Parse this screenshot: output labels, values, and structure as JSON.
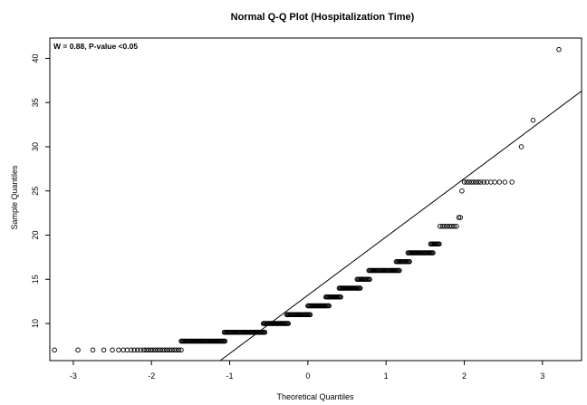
{
  "chart_data": {
    "type": "scatter",
    "title": "Normal Q-Q Plot (Hospitalization Time)",
    "xlabel": "Theoretical Quantiles",
    "ylabel": "Sample Quantiles",
    "annotation": "W = 0.88, P-value <0.05",
    "xlim": [
      -3.3,
      3.5
    ],
    "ylim": [
      5.8,
      42.3
    ],
    "xticks": [
      -3,
      -2,
      -1,
      0,
      1,
      2,
      3
    ],
    "yticks": [
      10,
      15,
      20,
      25,
      30,
      35,
      40
    ],
    "grid": false,
    "reference_line": {
      "slope": 6.6,
      "intercept": 13.2
    },
    "points": {
      "low_tail": [
        [
          -3.24,
          7
        ],
        [
          -2.94,
          7
        ],
        [
          -2.75,
          7
        ],
        [
          -2.61,
          7
        ],
        [
          -2.5,
          7
        ],
        [
          -2.42,
          7
        ],
        [
          -2.36,
          7
        ],
        [
          -2.31,
          7
        ],
        [
          -2.26,
          7
        ],
        [
          -2.22,
          7
        ],
        [
          -2.18,
          7
        ],
        [
          -2.14,
          7
        ],
        [
          -2.1,
          7
        ],
        [
          -2.07,
          7
        ],
        [
          -2.04,
          7
        ],
        [
          -2.01,
          7
        ],
        [
          -1.98,
          7
        ],
        [
          -1.95,
          7
        ],
        [
          -1.92,
          7
        ],
        [
          -1.89,
          7
        ],
        [
          -1.86,
          7
        ],
        [
          -1.83,
          7
        ],
        [
          -1.8,
          7
        ],
        [
          -1.77,
          7
        ],
        [
          -1.74,
          7
        ],
        [
          -1.71,
          7
        ],
        [
          -1.68,
          7
        ],
        [
          -1.65,
          7
        ],
        [
          -1.62,
          7
        ]
      ],
      "runs": [
        {
          "y": 8,
          "x_start": -1.62,
          "x_end": -1.06
        },
        {
          "y": 9,
          "x_start": -1.07,
          "x_end": -0.55
        },
        {
          "y": 10,
          "x_start": -0.57,
          "x_end": -0.25
        },
        {
          "y": 11,
          "x_start": -0.27,
          "x_end": 0.03
        },
        {
          "y": 12,
          "x_start": 0.0,
          "x_end": 0.27
        },
        {
          "y": 13,
          "x_start": 0.23,
          "x_end": 0.42
        },
        {
          "y": 14,
          "x_start": 0.4,
          "x_end": 0.67
        },
        {
          "y": 15,
          "x_start": 0.63,
          "x_end": 0.79
        },
        {
          "y": 16,
          "x_start": 0.78,
          "x_end": 1.17
        },
        {
          "y": 17,
          "x_start": 1.13,
          "x_end": 1.3
        },
        {
          "y": 18,
          "x_start": 1.28,
          "x_end": 1.6
        },
        {
          "y": 19,
          "x_start": 1.57,
          "x_end": 1.68
        }
      ],
      "upper": [
        [
          1.69,
          21
        ],
        [
          1.72,
          21
        ],
        [
          1.75,
          21
        ],
        [
          1.78,
          21
        ],
        [
          1.81,
          21
        ],
        [
          1.84,
          21
        ],
        [
          1.87,
          21
        ],
        [
          1.9,
          21
        ],
        [
          1.93,
          22
        ],
        [
          1.95,
          22
        ],
        [
          1.97,
          25
        ],
        [
          2.0,
          26
        ],
        [
          2.03,
          26
        ],
        [
          2.06,
          26
        ],
        [
          2.09,
          26
        ],
        [
          2.12,
          26
        ],
        [
          2.15,
          26
        ],
        [
          2.18,
          26
        ],
        [
          2.21,
          26
        ],
        [
          2.25,
          26
        ],
        [
          2.29,
          26
        ],
        [
          2.34,
          26
        ],
        [
          2.39,
          26
        ],
        [
          2.45,
          26
        ],
        [
          2.52,
          26
        ],
        [
          2.61,
          26
        ],
        [
          2.73,
          30
        ],
        [
          2.88,
          33
        ],
        [
          3.21,
          41
        ]
      ]
    }
  }
}
